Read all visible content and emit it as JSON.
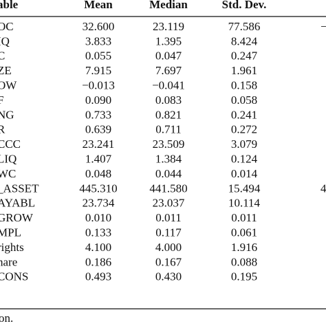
{
  "table": {
    "header": [
      "able",
      "Mean",
      "Median",
      "Std. Dev."
    ],
    "rows": [
      [
        "OC",
        "32.600",
        "23.119",
        "77.586",
        "−"
      ],
      [
        "IQ",
        "3.833",
        "1.395",
        "8.424",
        null
      ],
      [
        "C",
        "0.055",
        "0.047",
        "0.247",
        null
      ],
      [
        "ZE",
        "7.915",
        "7.697",
        "1.961",
        null
      ],
      [
        "OW",
        "−0.013",
        "−0.041",
        "0.158",
        null
      ],
      [
        "F",
        "0.090",
        "0.083",
        "0.058",
        null
      ],
      [
        "NG",
        "0.733",
        "0.821",
        "0.241",
        null
      ],
      [
        "R",
        "0.639",
        "0.711",
        "0.272",
        null
      ],
      [
        "CCC",
        "23.241",
        "23.509",
        "3.079",
        null
      ],
      [
        "LIQ",
        "1.407",
        "1.384",
        "0.124",
        null
      ],
      [
        "WC",
        "0.048",
        "0.044",
        "0.014",
        null
      ],
      [
        "_ASSET",
        "445.310",
        "441.580",
        "15.494",
        "4"
      ],
      [
        "AYABL",
        "23.734",
        "23.037",
        "10.114",
        null
      ],
      [
        "GROW",
        "0.010",
        "0.011",
        "0.011",
        null
      ],
      [
        "MPL",
        "0.133",
        "0.117",
        "0.061",
        null
      ],
      [
        "rights",
        "4.100",
        "4.000",
        "1.916",
        null
      ],
      [
        "hare",
        "0.186",
        "0.167",
        "0.088",
        null
      ],
      [
        "CONS",
        "0.493",
        "0.430",
        "0.195",
        null
      ]
    ],
    "footnote": "on."
  }
}
